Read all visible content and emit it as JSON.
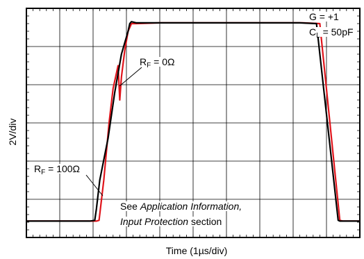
{
  "chart_data": {
    "type": "line",
    "xlabel_prefix": "Time (1",
    "xlabel_mu": "µ",
    "xlabel_suffix": "s/div)",
    "ylabel": "2V/div",
    "xlim": [
      0,
      10
    ],
    "ylim": [
      0,
      6
    ],
    "grid": true,
    "series": [
      {
        "name": "R_F = 100Ω",
        "color": "#000000",
        "x": [
          0,
          1.9,
          2.05,
          2.1,
          2.2,
          2.45,
          2.65,
          2.85,
          3.05,
          3.1,
          3.15,
          3.3,
          4.0,
          6.0,
          8.2,
          8.7,
          9.35,
          9.4,
          10
        ],
        "y": [
          0.43,
          0.43,
          0.45,
          0.75,
          1.5,
          2.6,
          3.8,
          4.8,
          5.4,
          5.6,
          5.65,
          5.62,
          5.62,
          5.62,
          5.62,
          5.6,
          0.45,
          0.43,
          0.43
        ]
      },
      {
        "name": "R_F = 0Ω",
        "color": "#e0141b",
        "x": [
          0,
          2.1,
          2.18,
          2.32,
          2.48,
          2.6,
          2.75,
          2.8,
          2.85,
          2.95,
          3.05,
          3.15,
          3.3,
          4.0,
          6.0,
          8.3,
          8.8,
          9.4,
          9.5,
          10
        ],
        "y": [
          0.43,
          0.43,
          0.45,
          1.5,
          3.0,
          3.9,
          4.5,
          3.6,
          4.2,
          4.9,
          5.4,
          5.6,
          5.6,
          5.62,
          5.62,
          5.62,
          5.6,
          0.45,
          0.43,
          0.43
        ]
      }
    ],
    "annotations": {
      "gain": "G = +1",
      "cl_main": "C",
      "cl_sub": "L",
      "cl_rest": " = 50pF",
      "rf0_main": "R",
      "rf0_sub": "F",
      "rf0_rest": " = 0Ω",
      "rf100_main": "R",
      "rf100_sub": "F",
      "rf100_rest": " = 100Ω",
      "note_prefix": "See ",
      "note_italic_1": "Application Information,",
      "note_italic_2": "Input Protection",
      "note_suffix": " section"
    }
  }
}
